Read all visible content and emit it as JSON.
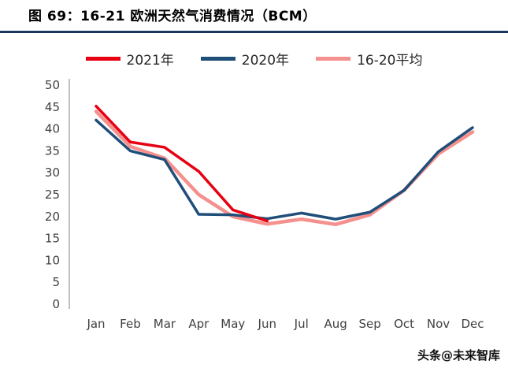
{
  "title": "图 69：16-21 欧洲天然气消费情况（BCM）",
  "watermark": "头条@未来智库",
  "colors": {
    "title_underline": "#17375e",
    "axis": "#808080",
    "tick_label": "#404040"
  },
  "chart_data": {
    "type": "line",
    "title": "16-21 欧洲天然气消费情况（BCM）",
    "categories": [
      "Jan",
      "Feb",
      "Mar",
      "Apr",
      "May",
      "Jun",
      "Jul",
      "Aug",
      "Sep",
      "Oct",
      "Nov",
      "Dec"
    ],
    "series": [
      {
        "name": "2021年",
        "color": "#e60012",
        "width": 3.5,
        "values": [
          45.2,
          37,
          35.8,
          30.3,
          21.5,
          19,
          null,
          null,
          null,
          null,
          null,
          null
        ]
      },
      {
        "name": "2020年",
        "color": "#1f4e79",
        "width": 3.5,
        "values": [
          42,
          35,
          33,
          20.5,
          20.4,
          19.5,
          20.8,
          19.4,
          21,
          26,
          34.8,
          40.3
        ]
      },
      {
        "name": "16-20平均",
        "color": "#f4918e",
        "width": 4.5,
        "values": [
          44,
          36,
          33.3,
          25,
          20,
          18.3,
          19.4,
          18.2,
          20.4,
          26,
          34.3,
          39.3
        ]
      }
    ],
    "xlabel": "",
    "ylabel": "",
    "ylim": [
      0,
      50
    ],
    "ytick_step": 5,
    "grid": false,
    "legend_position": "top"
  }
}
